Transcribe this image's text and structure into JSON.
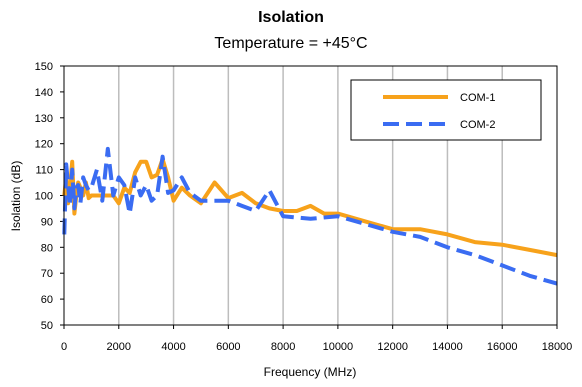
{
  "chart_data": {
    "type": "line",
    "title": "Isolation",
    "subtitle": "Temperature = +45°C",
    "xlabel": "Frequency (MHz)",
    "ylabel": "Isolation (dB)",
    "xlim": [
      0,
      18000
    ],
    "ylim": [
      50,
      150
    ],
    "xticks": [
      0,
      2000,
      4000,
      6000,
      8000,
      10000,
      12000,
      14000,
      16000,
      18000
    ],
    "yticks": [
      50,
      60,
      70,
      80,
      90,
      100,
      110,
      120,
      130,
      140,
      150
    ],
    "grid": "vertical",
    "legend": "top-right",
    "series": [
      {
        "name": "COM-1",
        "color": "#F7A21B",
        "style": "solid",
        "x": [
          10,
          80,
          150,
          220,
          300,
          380,
          450,
          520,
          600,
          700,
          800,
          900,
          1000,
          1200,
          1400,
          1600,
          1800,
          2000,
          2200,
          2400,
          2600,
          2800,
          3000,
          3200,
          3400,
          3600,
          3800,
          4000,
          4300,
          4600,
          5000,
          5500,
          6000,
          6500,
          7000,
          7500,
          8000,
          8500,
          9000,
          9500,
          10000,
          11000,
          12000,
          13000,
          14000,
          15000,
          16000,
          17000,
          18000
        ],
        "y": [
          100,
          107,
          97,
          103,
          113,
          93,
          100,
          105,
          103,
          100,
          105,
          99,
          100,
          100,
          100,
          100,
          100,
          97,
          103,
          101,
          109,
          113,
          113,
          107,
          108,
          114,
          107,
          98,
          103,
          100,
          97,
          105,
          99,
          101,
          97,
          95,
          94,
          94,
          96,
          93,
          93,
          90,
          87,
          87,
          85,
          82,
          81,
          79,
          77
        ]
      },
      {
        "name": "COM-2",
        "color": "#3A6CF2",
        "style": "dashed",
        "x": [
          10,
          80,
          150,
          220,
          300,
          380,
          450,
          520,
          600,
          700,
          800,
          900,
          1000,
          1200,
          1400,
          1600,
          1800,
          2000,
          2200,
          2400,
          2600,
          2800,
          3000,
          3200,
          3400,
          3600,
          3800,
          4000,
          4300,
          4600,
          5000,
          5500,
          6000,
          6500,
          7000,
          7500,
          8000,
          9000,
          10000,
          11000,
          12000,
          13000,
          14000,
          15000,
          16000,
          17000,
          18000
        ],
        "y": [
          85,
          112,
          104,
          96,
          110,
          95,
          103,
          104,
          97,
          107,
          104,
          102,
          103,
          110,
          98,
          118,
          100,
          107,
          104,
          93,
          107,
          100,
          104,
          98,
          100,
          115,
          101,
          102,
          107,
          101,
          98,
          98,
          98,
          96,
          94,
          102,
          92,
          91,
          92,
          89,
          86,
          84,
          80,
          77,
          73,
          69,
          66
        ]
      }
    ]
  }
}
